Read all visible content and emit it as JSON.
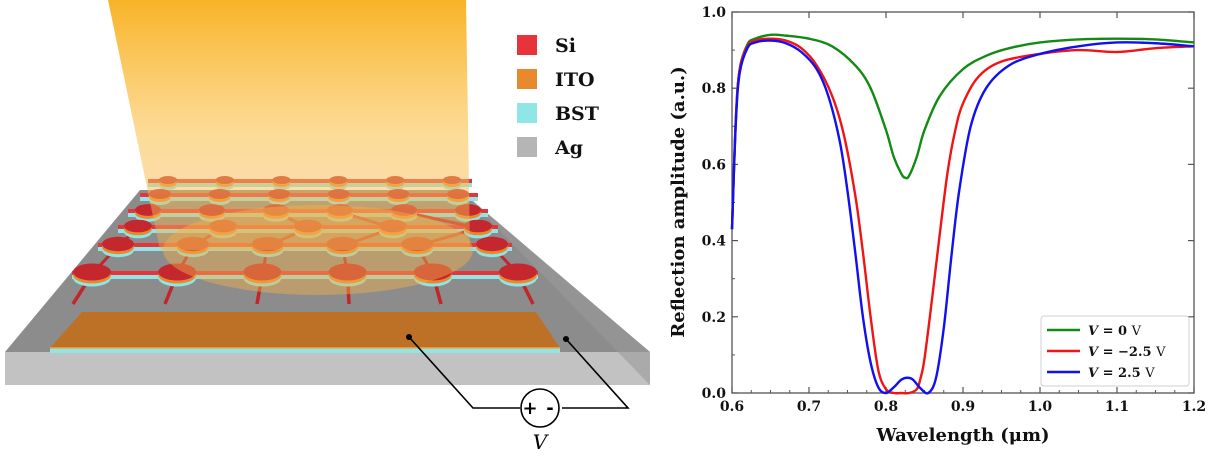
{
  "schematic": {
    "legend": [
      {
        "label": "Si",
        "color": "#e8333a"
      },
      {
        "label": "ITO",
        "color": "#e8892e"
      },
      {
        "label": "BST",
        "color": "#8ee6e6"
      },
      {
        "label": "Ag",
        "color": "#b5b5b5"
      }
    ],
    "voltage_source": {
      "plus": "+",
      "minus": "-",
      "label": "V"
    },
    "beam_color": "#f7a600"
  },
  "chart_data": {
    "type": "line",
    "title": "",
    "xlabel": "Wavelength (μm)",
    "ylabel": "Reflection amplitude (a.u.)",
    "xlim": [
      0.6,
      1.2
    ],
    "ylim": [
      0.0,
      1.0
    ],
    "xticks": [
      "0.6",
      "0.7",
      "0.8",
      "0.9",
      "1.0",
      "1.1",
      "1.2"
    ],
    "yticks": [
      "0.0",
      "0.2",
      "0.4",
      "0.6",
      "0.8",
      "1.0"
    ],
    "grid": false,
    "legend_position": "lower-right",
    "series": [
      {
        "name": "V = 0 V",
        "legend_var": "V",
        "legend_eq": " = 0 ",
        "legend_unit": "V",
        "color": "#138a13",
        "x": [
          0.6,
          0.605,
          0.61,
          0.62,
          0.63,
          0.65,
          0.67,
          0.7,
          0.73,
          0.76,
          0.78,
          0.8,
          0.81,
          0.82,
          0.825,
          0.83,
          0.84,
          0.85,
          0.87,
          0.9,
          0.93,
          0.96,
          1.0,
          1.05,
          1.1,
          1.15,
          1.2
        ],
        "y": [
          0.43,
          0.72,
          0.85,
          0.915,
          0.93,
          0.94,
          0.938,
          0.93,
          0.91,
          0.86,
          0.8,
          0.69,
          0.62,
          0.575,
          0.565,
          0.57,
          0.62,
          0.69,
          0.78,
          0.85,
          0.885,
          0.905,
          0.92,
          0.928,
          0.93,
          0.928,
          0.92
        ]
      },
      {
        "name": "V = -2.5 V",
        "legend_var": "V",
        "legend_eq": " = −2.5 ",
        "legend_unit": "V",
        "color": "#f01414",
        "x": [
          0.6,
          0.605,
          0.61,
          0.62,
          0.63,
          0.65,
          0.67,
          0.69,
          0.71,
          0.73,
          0.745,
          0.76,
          0.77,
          0.78,
          0.79,
          0.8,
          0.81,
          0.82,
          0.83,
          0.84,
          0.845,
          0.85,
          0.86,
          0.87,
          0.88,
          0.89,
          0.9,
          0.92,
          0.95,
          1.0,
          1.05,
          1.1,
          1.15,
          1.2
        ],
        "y": [
          0.43,
          0.72,
          0.85,
          0.91,
          0.925,
          0.93,
          0.925,
          0.905,
          0.86,
          0.78,
          0.68,
          0.52,
          0.37,
          0.2,
          0.06,
          0.01,
          0.0,
          0.0,
          0.0,
          0.01,
          0.04,
          0.09,
          0.25,
          0.42,
          0.58,
          0.69,
          0.76,
          0.83,
          0.87,
          0.89,
          0.9,
          0.895,
          0.905,
          0.91
        ]
      },
      {
        "name": "V = 2.5 V",
        "legend_var": "V",
        "legend_eq": " = 2.5 ",
        "legend_unit": "V",
        "color": "#1010f0",
        "x": [
          0.6,
          0.605,
          0.61,
          0.62,
          0.63,
          0.65,
          0.67,
          0.69,
          0.71,
          0.725,
          0.74,
          0.75,
          0.76,
          0.77,
          0.78,
          0.79,
          0.8,
          0.81,
          0.82,
          0.828,
          0.835,
          0.845,
          0.855,
          0.865,
          0.875,
          0.885,
          0.895,
          0.91,
          0.93,
          0.96,
          1.0,
          1.05,
          1.1,
          1.15,
          1.2
        ],
        "y": [
          0.43,
          0.71,
          0.84,
          0.905,
          0.92,
          0.925,
          0.918,
          0.895,
          0.85,
          0.78,
          0.66,
          0.53,
          0.37,
          0.2,
          0.08,
          0.015,
          0.0,
          0.015,
          0.035,
          0.04,
          0.035,
          0.012,
          0.0,
          0.04,
          0.17,
          0.36,
          0.53,
          0.7,
          0.8,
          0.86,
          0.89,
          0.91,
          0.92,
          0.918,
          0.91
        ]
      }
    ]
  }
}
